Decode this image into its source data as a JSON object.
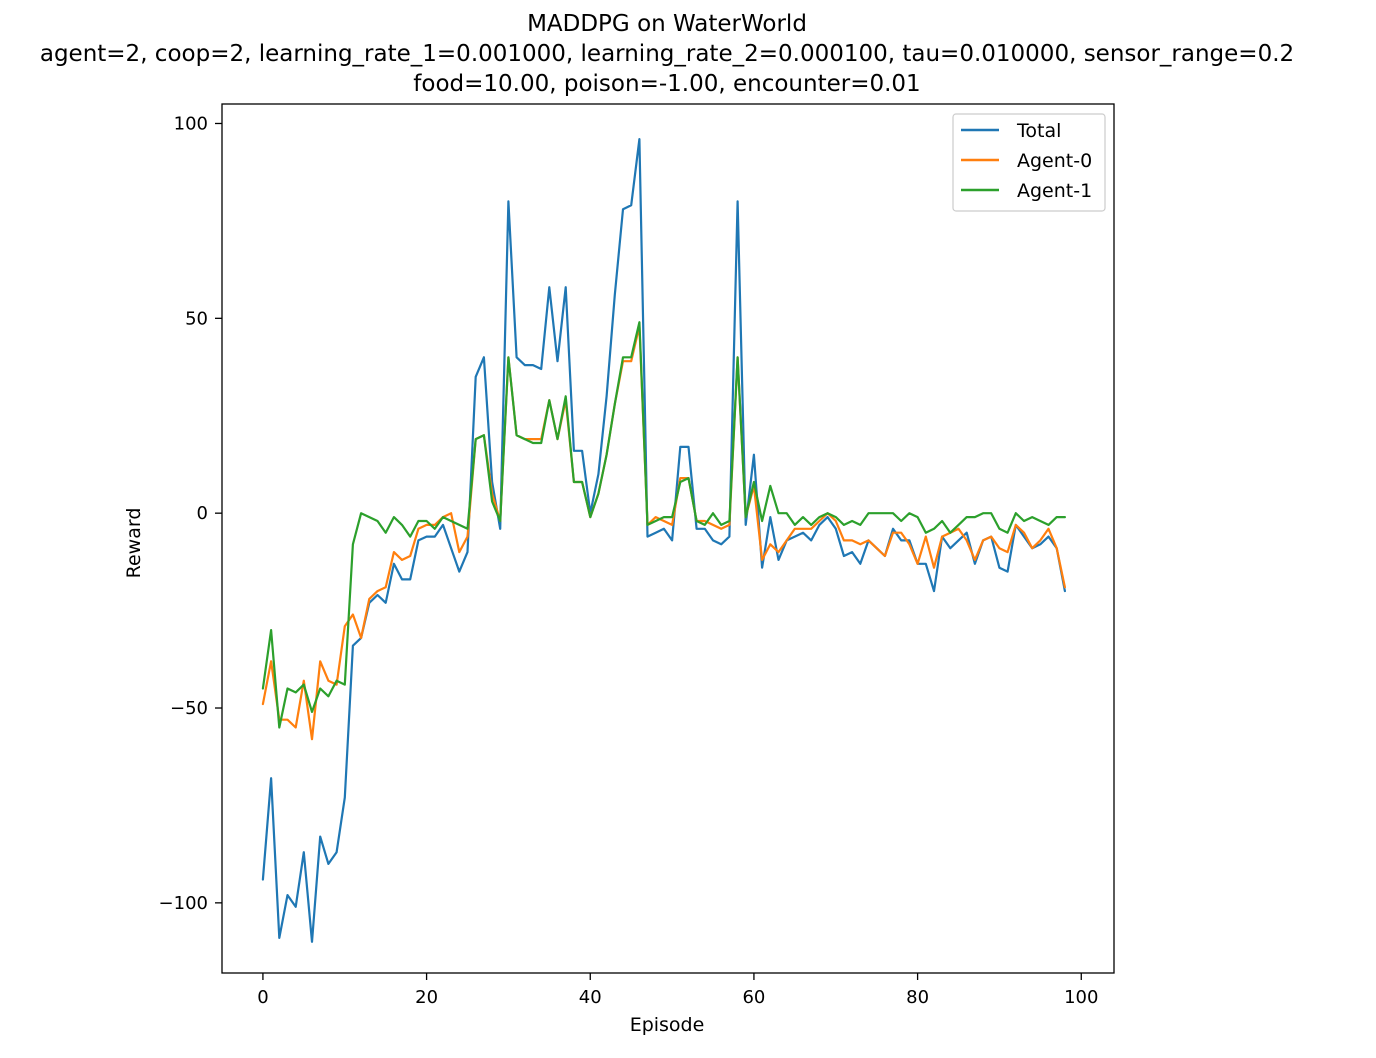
{
  "chart_data": {
    "type": "line",
    "title": "MADDPG on WaterWorld",
    "subtitle_lines": [
      "agent=2, coop=2, learning_rate_1=0.001000, learning_rate_2=0.000100, tau=0.010000, sensor_range=0.2",
      "food=10.00, poison=-1.00, encounter=0.01"
    ],
    "xlabel": "Episode",
    "ylabel": "Reward",
    "xlim": [
      -5,
      104
    ],
    "ylim": [
      -118,
      105
    ],
    "xticks": [
      0,
      20,
      40,
      60,
      80,
      100
    ],
    "xtick_labels": [
      "0",
      "20",
      "40",
      "60",
      "80",
      "100"
    ],
    "yticks": [
      100,
      50,
      0,
      -50,
      -100
    ],
    "ytick_labels": [
      "100",
      "50",
      "0",
      "−50",
      "−100"
    ],
    "grid": false,
    "legend_position": "top-right",
    "series": [
      {
        "name": "Total",
        "color": "#1f77b4",
        "values": [
          -94,
          -68,
          -109,
          -98,
          -101,
          -87,
          -110,
          -83,
          -90,
          -87,
          -73,
          -34,
          -32,
          -23,
          -21,
          -23,
          -13,
          -17,
          -17,
          -7,
          -6,
          -6,
          -3,
          -9,
          -15,
          -10,
          35,
          40,
          8,
          -4,
          80,
          40,
          38,
          38,
          37,
          58,
          39,
          58,
          16,
          16,
          0,
          10,
          30,
          56,
          78,
          79,
          96,
          -6,
          -5,
          -4,
          -7,
          17,
          17,
          -4,
          -4,
          -7,
          -8,
          -6,
          80,
          -3,
          15,
          -14,
          -1,
          -12,
          -7,
          -6,
          -5,
          -7,
          -3,
          -1,
          -4,
          -11,
          -10,
          -13,
          -7,
          -9,
          -11,
          -4,
          -7,
          -7,
          -13,
          -13,
          -20,
          -6,
          -9,
          -7,
          -5,
          -13,
          -7,
          -6,
          -14,
          -15,
          -3,
          -6,
          -9,
          -8,
          -6,
          -9,
          -20
        ],
        "values_note": ""
      },
      {
        "name": "Agent-0",
        "color": "#ff7f0e",
        "values": [
          -49,
          -38,
          -53,
          -53,
          -55,
          -43,
          -58,
          -38,
          -43,
          -44,
          -29,
          -26,
          -32,
          -22,
          -20,
          -19,
          -10,
          -12,
          -11,
          -4,
          -3,
          -3,
          -1,
          0,
          -10,
          -6,
          19,
          20,
          5,
          -2,
          40,
          20,
          19,
          19,
          19,
          29,
          19,
          29,
          8,
          8,
          -1,
          5,
          15,
          28,
          39,
          39,
          48,
          -3,
          -1,
          -2,
          -3,
          9,
          9,
          -2,
          -2,
          -3,
          -4,
          -3,
          40,
          -1,
          7,
          -12,
          -8,
          -10,
          -7,
          -4,
          -4,
          -4,
          -2,
          0,
          -2,
          -7,
          -7,
          -8,
          -7,
          -9,
          -11,
          -5,
          -5,
          -8,
          -13,
          -6,
          -14,
          -6,
          -5,
          -4,
          -7,
          -12,
          -7,
          -6,
          -9,
          -10,
          -3,
          -5,
          -9,
          -7,
          -4,
          -9,
          -19
        ]
      },
      {
        "name": "Agent-1",
        "color": "#2ca02c",
        "values": [
          -45,
          -30,
          -55,
          -45,
          -46,
          -44,
          -51,
          -45,
          -47,
          -43,
          -44,
          -8,
          0,
          -1,
          -2,
          -5,
          -1,
          -3,
          -6,
          -2,
          -2,
          -4,
          -1,
          -2,
          -3,
          -4,
          19,
          20,
          3,
          -2,
          40,
          20,
          19,
          18,
          18,
          29,
          19,
          30,
          8,
          8,
          -1,
          5,
          15,
          28,
          40,
          40,
          49,
          -3,
          -2,
          -1,
          -1,
          8,
          9,
          -2,
          -3,
          0,
          -3,
          -2,
          40,
          -1,
          8,
          -2,
          7,
          0,
          0,
          -3,
          -1,
          -3,
          -1,
          0,
          -1,
          -3,
          -2,
          -3,
          0,
          0,
          0,
          0,
          -2,
          0,
          -1,
          -5,
          -4,
          -2,
          -5,
          -3,
          -1,
          -1,
          0,
          0,
          -4,
          -5,
          0,
          -2,
          -1,
          -2,
          -3,
          -1,
          -1
        ]
      }
    ]
  }
}
